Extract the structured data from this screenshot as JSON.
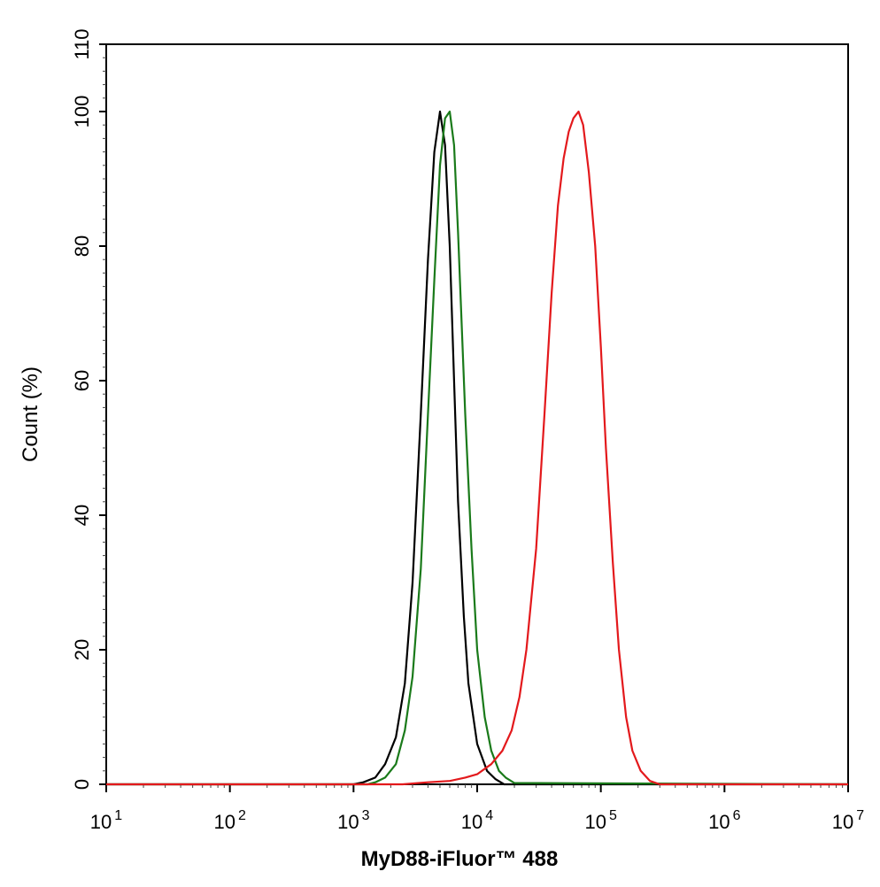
{
  "chart_data": {
    "type": "line",
    "xlabel": "MyD88-iFluor™ 488",
    "ylabel": "Count  (%)",
    "xscale": "log",
    "xlim": [
      10,
      10000000
    ],
    "ylim": [
      0,
      110
    ],
    "grid": false,
    "x_ticks": [
      {
        "base": "10",
        "exp": "1",
        "value": 10
      },
      {
        "base": "10",
        "exp": "2",
        "value": 100
      },
      {
        "base": "10",
        "exp": "3",
        "value": 1000
      },
      {
        "base": "10",
        "exp": "4",
        "value": 10000
      },
      {
        "base": "10",
        "exp": "5",
        "value": 100000
      },
      {
        "base": "10",
        "exp": "6",
        "value": 1000000
      },
      {
        "base": "10",
        "exp": "7",
        "value": 10000000
      }
    ],
    "y_ticks": [
      0,
      20,
      40,
      60,
      80,
      100,
      110
    ],
    "series": [
      {
        "color": "#000000",
        "x": [
          10,
          1000,
          1200,
          1500,
          1800,
          2200,
          2600,
          3000,
          3500,
          4000,
          4500,
          5000,
          5500,
          6000,
          6500,
          7000,
          7800,
          8500,
          10000,
          12000,
          14000,
          16500,
          10000000
        ],
        "y": [
          0,
          0,
          0.3,
          1,
          3,
          7,
          15,
          30,
          55,
          78,
          94,
          100,
          95,
          80,
          60,
          42,
          25,
          15,
          6,
          2,
          0.8,
          0,
          0
        ]
      },
      {
        "color": "#1a7a1a",
        "x": [
          10,
          1300,
          1500,
          1800,
          2200,
          2600,
          3000,
          3500,
          4000,
          4500,
          5000,
          5500,
          6000,
          6500,
          7000,
          7500,
          8000,
          9000,
          10000,
          11500,
          13000,
          15000,
          17000,
          20000,
          10000000
        ],
        "y": [
          0,
          0,
          0.3,
          1,
          3,
          8,
          16,
          32,
          55,
          75,
          92,
          99,
          100,
          95,
          82,
          68,
          55,
          35,
          20,
          10,
          5,
          2,
          1,
          0.2,
          0
        ]
      },
      {
        "color": "#e3191c",
        "x": [
          10,
          2500,
          4000,
          6000,
          8000,
          10000,
          13000,
          16000,
          19000,
          22000,
          25000,
          30000,
          35000,
          40000,
          45000,
          50000,
          55000,
          60000,
          66000,
          72000,
          80000,
          90000,
          100000,
          110000,
          125000,
          140000,
          160000,
          180000,
          210000,
          250000,
          300000,
          320000,
          10000000
        ],
        "y": [
          0,
          0,
          0.3,
          0.5,
          1,
          1.5,
          3,
          5,
          8,
          13,
          20,
          35,
          55,
          73,
          86,
          93,
          97,
          99,
          100,
          98,
          91,
          80,
          65,
          50,
          33,
          20,
          10,
          5,
          2,
          0.5,
          0,
          0,
          0
        ]
      }
    ]
  }
}
